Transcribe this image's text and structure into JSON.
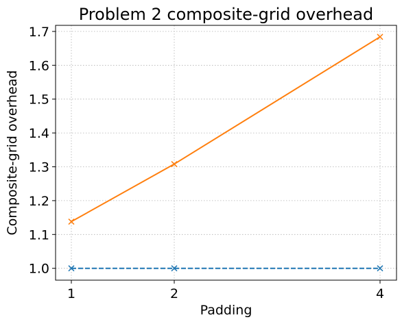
{
  "chart_data": {
    "type": "line",
    "title": "Problem 2 composite-grid overhead",
    "xlabel": "Padding",
    "ylabel": "Composite-grid overhead",
    "x": [
      1,
      2,
      4
    ],
    "x_tick_labels": [
      "1",
      "2",
      "4"
    ],
    "ylim": [
      0.965,
      1.718
    ],
    "y_ticks": [
      1.0,
      1.1,
      1.2,
      1.3,
      1.4,
      1.5,
      1.6,
      1.7
    ],
    "y_tick_labels": [
      "1.0",
      "1.1",
      "1.2",
      "1.3",
      "1.4",
      "1.5",
      "1.6",
      "1.7"
    ],
    "grid": true,
    "series": [
      {
        "values": [
          1.0,
          1.0,
          1.0
        ],
        "color": "#1f77b4",
        "line_style": "dashed",
        "marker": "x"
      },
      {
        "values": [
          1.138,
          1.308,
          1.684
        ],
        "color": "#ff7f0e",
        "line_style": "solid",
        "marker": "x"
      }
    ]
  }
}
